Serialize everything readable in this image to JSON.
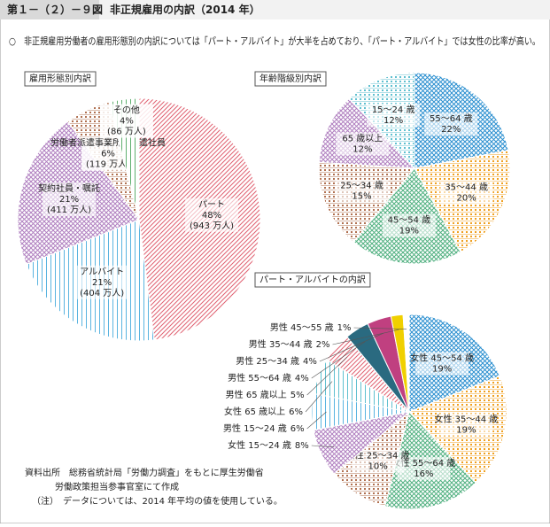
{
  "header": {
    "figure_no": "第１－（２）－９図",
    "title": "非正規雇用の内訳（2014 年）"
  },
  "summary": "○　非正規雇用労働者の雇用形態別の内訳については「パート・アルバイト」が大半を占めており、「パート・アルバイト」では女性の比率が高い。",
  "chart_data": [
    {
      "type": "pie",
      "title": "雇用形態別内訳",
      "categories": [
        "パート",
        "アルバイト",
        "契約社員・嘱託",
        "労働者派遣事業所の派遣社員",
        "その他"
      ],
      "values": [
        48,
        21,
        21,
        6,
        4
      ],
      "value_labels": [
        "48%",
        "21%",
        "21%",
        "6%",
        "4%"
      ],
      "sub_values": [
        943,
        404,
        411,
        119,
        86
      ],
      "sub_value_labels": [
        "(943 万人)",
        "(404 万人)",
        "(411 万人)",
        "(119 万人)",
        "(86 万人)"
      ],
      "colors": [
        "#e06070",
        "#5ab4e0",
        "#b080c0",
        "#b07050",
        "#60b070"
      ],
      "patterns": [
        "diag",
        "vert",
        "cross",
        "dots",
        "vert"
      ]
    },
    {
      "type": "pie",
      "title": "年齢階級別内訳",
      "categories": [
        "55～64 歳",
        "35～44 歳",
        "45～54 歳",
        "25～34 歳",
        "65 歳以上",
        "15～24 歳"
      ],
      "values": [
        22,
        20,
        19,
        15,
        12,
        12
      ],
      "value_labels": [
        "22%",
        "20%",
        "19%",
        "15%",
        "12%",
        "12%"
      ],
      "colors": [
        "#2a8fd0",
        "#f0a020",
        "#50b080",
        "#b07050",
        "#b080c0",
        "#60c0d0"
      ],
      "patterns": [
        "cross",
        "dots",
        "cross",
        "dots",
        "cross",
        "dots"
      ]
    },
    {
      "type": "pie",
      "title": "パート・アルバイトの内訳",
      "categories": [
        "女性 45～54 歳",
        "女性 35～44 歳",
        "女性 55～64 歳",
        "女性 25～34 歳",
        "女性 15～24 歳",
        "男性 15～24 歳",
        "女性 65 歳以上",
        "男性 65 歳以上",
        "男性 55～64 歳",
        "男性 25～34 歳",
        "男性 35～44 歳",
        "男性 45～55 歳"
      ],
      "values": [
        19,
        19,
        16,
        10,
        8,
        6,
        6,
        5,
        4,
        4,
        2,
        1
      ],
      "value_labels": [
        "19%",
        "19%",
        "16%",
        "10%",
        "8%",
        "6%",
        "6%",
        "5%",
        "4%",
        "4%",
        "2%",
        "1%"
      ],
      "colors": [
        "#2a8fd0",
        "#f0a020",
        "#50b080",
        "#b07050",
        "#b080c0",
        "#5ab4e0",
        "#60c0d0",
        "#e06070",
        "#2a6a80",
        "#c04080",
        "#f0d000",
        "#ffffff"
      ],
      "patterns": [
        "cross",
        "dots",
        "cross",
        "dots",
        "cross",
        "vert",
        "vert",
        "diag",
        "solid",
        "solid",
        "solid",
        "solid"
      ]
    }
  ],
  "notes": [
    "資料出所　総務省統計局「労働力調査」をもとに厚生労働省",
    "労働政策担当参事官室にて作成",
    "（注）　データについては、2014 年平均の値を使用している。"
  ]
}
